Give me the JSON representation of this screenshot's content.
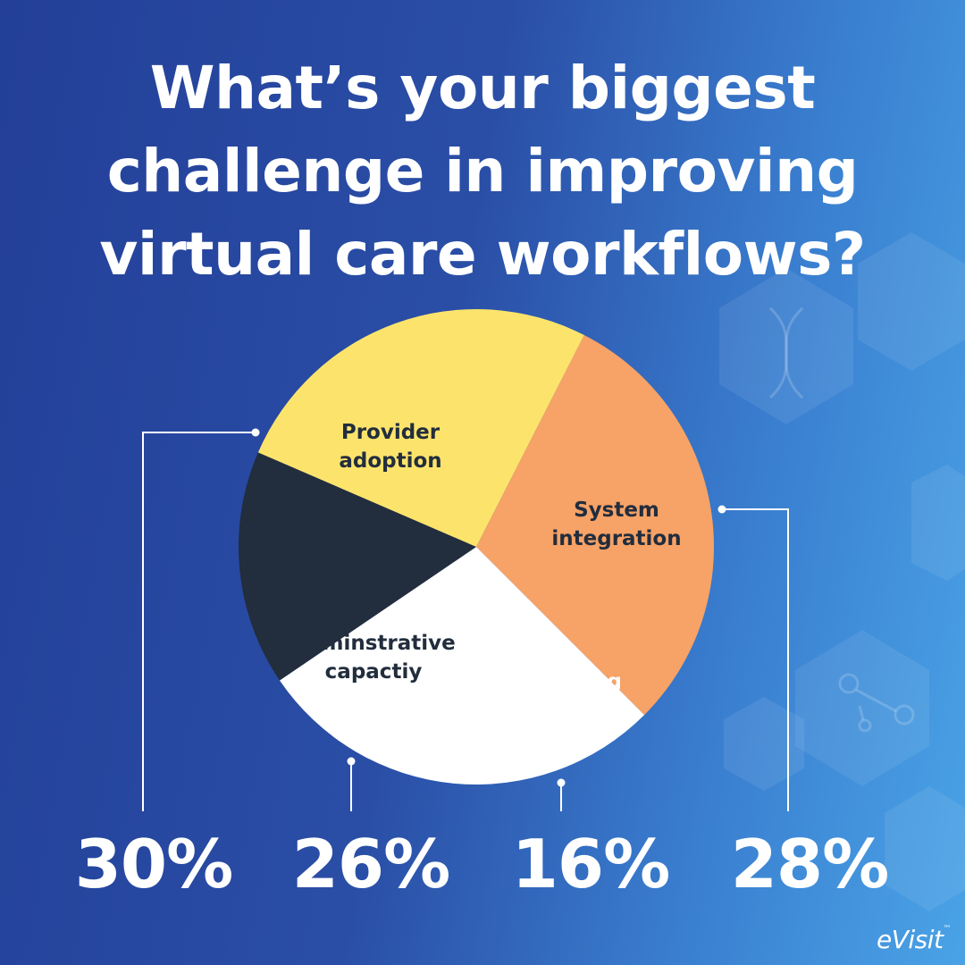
{
  "title_lines": [
    "What’s your biggest",
    "challenge in improving",
    "virtual care workflows?"
  ],
  "brand": {
    "name": "eVisit",
    "mark": "™"
  },
  "colors": {
    "provider": "#f7a266",
    "system": "#ffffff",
    "scheduling": "#222d3d",
    "administrative": "#fce46c",
    "label_dark": "#222d3d",
    "label_light": "#ffffff",
    "connector": "#ffffff"
  },
  "chart_data": {
    "type": "pie",
    "slices": [
      {
        "label_lines": [
          "Provider",
          "adoption"
        ],
        "value": 30,
        "display": "30%",
        "color": "#f7a266",
        "label_color": "#222d3d"
      },
      {
        "label_lines": [
          "System",
          "integration"
        ],
        "value": 28,
        "display": "28%",
        "color": "#ffffff",
        "label_color": "#222d3d"
      },
      {
        "label_lines": [
          "Scheduling",
          "issues"
        ],
        "value": 16,
        "display": "16%",
        "color": "#222d3d",
        "label_color": "#ffffff"
      },
      {
        "label_lines": [
          "Adminstrative",
          "capactiy"
        ],
        "value": 26,
        "display": "26%",
        "color": "#fce46c",
        "label_color": "#222d3d"
      }
    ],
    "start_angle_deg": 27,
    "direction": "clockwise"
  }
}
